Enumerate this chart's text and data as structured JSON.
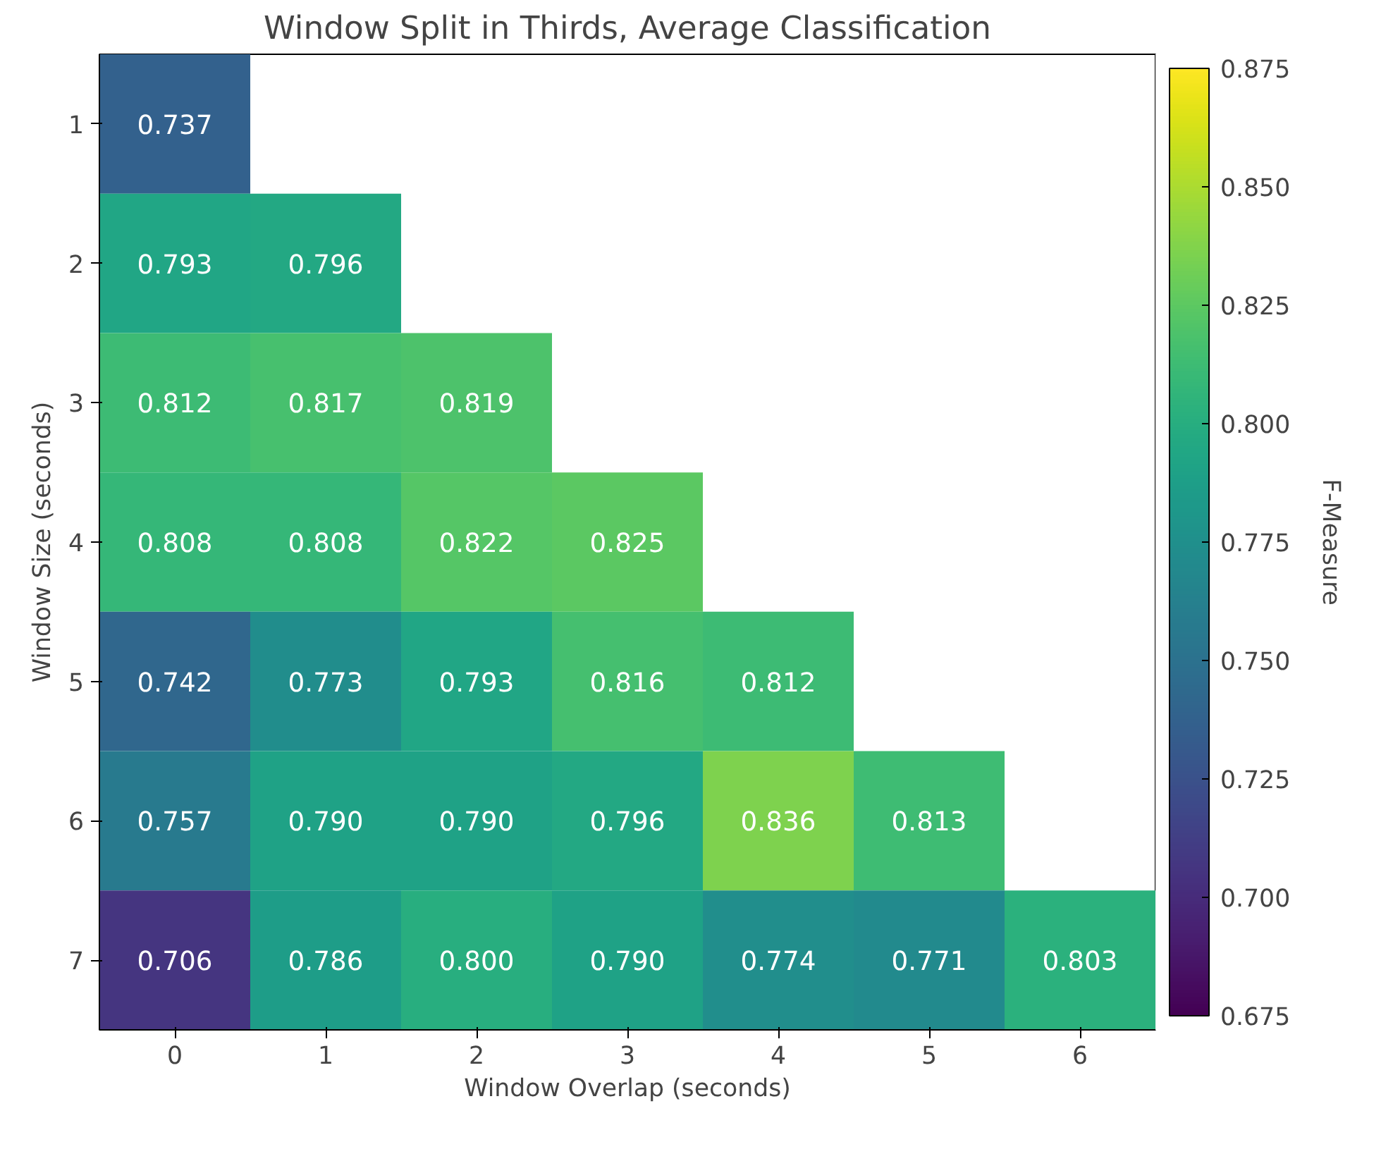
{
  "chart_data": {
    "type": "heatmap",
    "title": "Window Split in Thirds, Average Classification",
    "xlabel": "Window Overlap (seconds)",
    "ylabel": "Window Size (seconds)",
    "clabel": "F-Measure",
    "categories": [
      "0",
      "1",
      "2",
      "3",
      "4",
      "5",
      "6"
    ],
    "y_categories": [
      "1",
      "2",
      "3",
      "4",
      "5",
      "6",
      "7"
    ],
    "cells": [
      [
        0.737,
        null,
        null,
        null,
        null,
        null,
        null
      ],
      [
        0.793,
        0.796,
        null,
        null,
        null,
        null,
        null
      ],
      [
        0.812,
        0.817,
        0.819,
        null,
        null,
        null,
        null
      ],
      [
        0.808,
        0.808,
        0.822,
        0.825,
        null,
        null,
        null
      ],
      [
        0.742,
        0.773,
        0.793,
        0.816,
        0.812,
        null,
        null
      ],
      [
        0.757,
        0.79,
        0.79,
        0.796,
        0.836,
        0.813,
        null
      ],
      [
        0.706,
        0.786,
        0.8,
        0.79,
        0.774,
        0.771,
        0.803
      ]
    ],
    "cell_labels": [
      [
        "0.737",
        null,
        null,
        null,
        null,
        null,
        null
      ],
      [
        "0.793",
        "0.796",
        null,
        null,
        null,
        null,
        null
      ],
      [
        "0.812",
        "0.817",
        "0.819",
        null,
        null,
        null,
        null
      ],
      [
        "0.808",
        "0.808",
        "0.822",
        "0.825",
        null,
        null,
        null
      ],
      [
        "0.742",
        "0.773",
        "0.793",
        "0.816",
        "0.812",
        null,
        null
      ],
      [
        "0.757",
        "0.790",
        "0.790",
        "0.796",
        "0.836",
        "0.813",
        null
      ],
      [
        "0.706",
        "0.786",
        "0.800",
        "0.790",
        "0.774",
        "0.771",
        "0.803"
      ]
    ],
    "clim": [
      0.675,
      0.875
    ],
    "cticks": [
      0.675,
      {
        "value": 0.7,
        "label": "0.700"
      },
      0.725,
      {
        "value": 0.75,
        "label": "0.750"
      },
      0.775,
      {
        "value": 0.8,
        "label": "0.800"
      },
      0.825,
      {
        "value": 0.85,
        "label": "0.850"
      },
      0.875
    ],
    "grid": false
  }
}
